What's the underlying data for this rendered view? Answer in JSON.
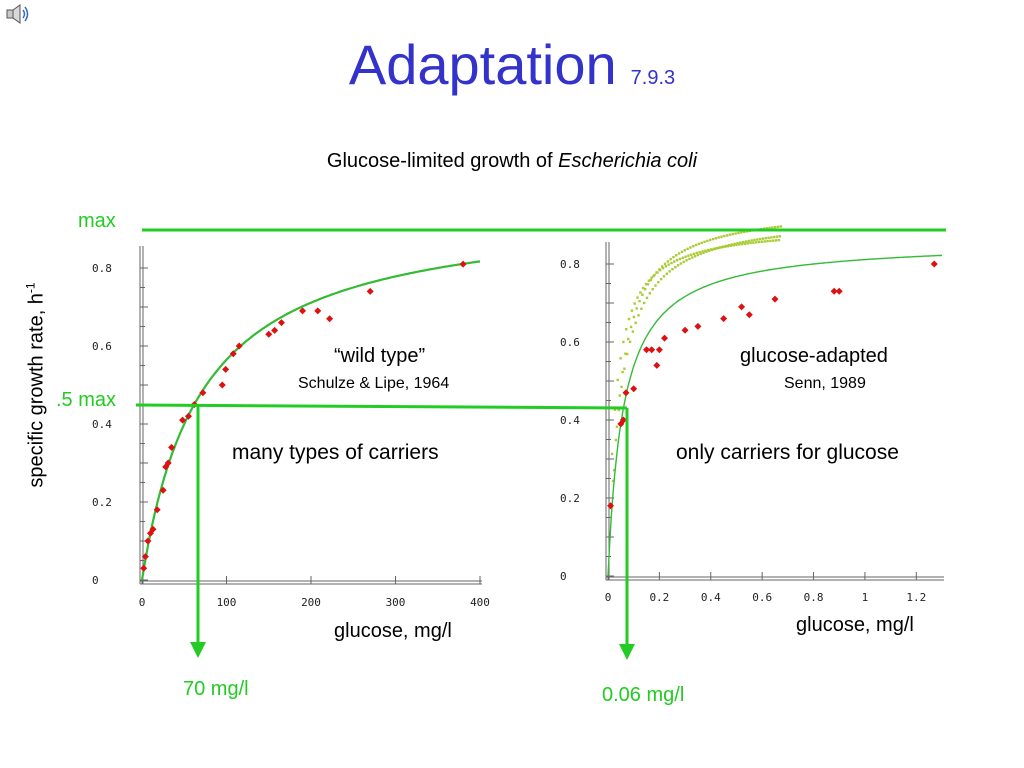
{
  "title": "Adaptation",
  "title_number": "7.9.3",
  "subtitle_prefix": "Glucose-limited growth of ",
  "subtitle_organism": "Escherichia coli",
  "y_axis_label": "specific growth rate, h",
  "y_axis_label_exponent": "-1",
  "max_label": "max",
  "half_max_label": ".5 max",
  "colors": {
    "title": "#3333cc",
    "green": "#22cc22",
    "points": "#dd1111",
    "fit": "#33bb33",
    "adapted_dots": "#a8cc33"
  },
  "icons": {
    "top_left": "speaker-icon"
  },
  "left_panel": {
    "label_title": "“wild type”",
    "label_citation": "Schulze & Lipe, 1964",
    "note": "many types of carriers",
    "xlabel": "glucose, mg/l",
    "arrow_value_label": "70 mg/l"
  },
  "right_panel": {
    "label_title": "glucose-adapted",
    "label_citation": "Senn, 1989",
    "note": "only carriers for glucose",
    "xlabel": "glucose, mg/l",
    "arrow_value_label": "0.06 mg/l"
  },
  "chart_data": [
    {
      "type": "scatter",
      "xlabel": "glucose, mg/l",
      "ylabel": "specific growth rate, h-1",
      "xlim": [
        0,
        400
      ],
      "ylim": [
        0,
        0.8
      ],
      "x_ticks": [
        "0",
        "100",
        "200",
        "300",
        "400"
      ],
      "y_ticks": [
        "0",
        "0.2",
        "0.4",
        "0.6",
        "0.8"
      ],
      "fit": {
        "model": "monod",
        "mu_max": 0.96,
        "Ks": 70
      },
      "series": [
        {
          "x": [
            2,
            4,
            7,
            10,
            13,
            18,
            25,
            28,
            31,
            35,
            48,
            55,
            62,
            72,
            95,
            99,
            108,
            115,
            150,
            157,
            165,
            190,
            208,
            222,
            270,
            380
          ],
          "y": [
            0.03,
            0.06,
            0.1,
            0.12,
            0.13,
            0.18,
            0.23,
            0.29,
            0.3,
            0.34,
            0.41,
            0.42,
            0.45,
            0.48,
            0.5,
            0.54,
            0.58,
            0.6,
            0.63,
            0.64,
            0.66,
            0.69,
            0.69,
            0.67,
            0.74,
            0.81
          ]
        }
      ]
    },
    {
      "type": "scatter",
      "xlabel": "glucose, mg/l",
      "ylabel": "specific growth rate, h-1",
      "xlim": [
        0,
        1.3
      ],
      "ylim": [
        0,
        0.8
      ],
      "x_ticks": [
        "0",
        "0.2",
        "0.4",
        "0.6",
        "0.8",
        "1",
        "1.2"
      ],
      "y_ticks": [
        "0",
        "0.2",
        "0.4",
        "0.6",
        "0.8"
      ],
      "fit": {
        "model": "monod",
        "mu_max": 0.86,
        "Ks": 0.06
      },
      "series": [
        {
          "x": [
            0.01,
            0.05,
            0.06,
            0.07,
            0.1,
            0.15,
            0.17,
            0.19,
            0.2,
            0.22,
            0.3,
            0.35,
            0.45,
            0.52,
            0.55,
            0.65,
            0.88,
            0.9,
            1.27
          ],
          "y": [
            0.18,
            0.39,
            0.4,
            0.47,
            0.48,
            0.58,
            0.58,
            0.54,
            0.58,
            0.61,
            0.63,
            0.64,
            0.66,
            0.69,
            0.67,
            0.71,
            0.73,
            0.73,
            0.8
          ]
        }
      ]
    }
  ]
}
